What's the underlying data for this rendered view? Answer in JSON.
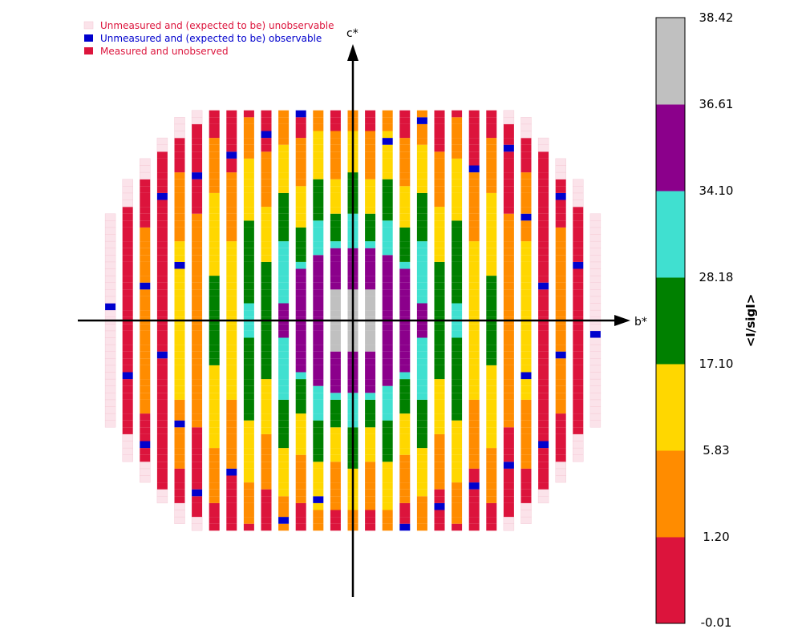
{
  "chart_data": {
    "type": "heatmap",
    "title": "",
    "xlabel": "b*",
    "ylabel": "c*",
    "colorbar": {
      "title": "<I/sigI>",
      "ticks": [
        "-0.01",
        "1.20",
        "5.83",
        "17.10",
        "28.18",
        "34.10",
        "36.61",
        "38.42"
      ],
      "colors": [
        "#dc143c",
        "#ff8c00",
        "#ffd700",
        "#008000",
        "#40e0d0",
        "#8b008b",
        "#c0c0c0"
      ]
    },
    "legend": {
      "placement": "top-left",
      "items": [
        {
          "label": "Unmeasured and (expected to be) unobservable",
          "marker": "#fbe3ea",
          "text_color": "#dc143c"
        },
        {
          "label": "Unmeasured and (expected to be) observable",
          "marker": "#0000cd",
          "text_color": "#0000cd"
        },
        {
          "label": "Measured and unobserved",
          "marker": "#dc143c",
          "text_color": "#dc143c"
        }
      ]
    },
    "grid": false,
    "k_range": [
      -14,
      14
    ],
    "l_range": [
      -15,
      15
    ],
    "resolution_limit_fraction": 0.935,
    "unobservable_shell_fraction": 0.955,
    "pattern": "concentric rings of mean I/sigI decreasing with resolution; systematically absent/unobservable columns are pale pink",
    "ring_bin_bounds": [
      0.13,
      0.27,
      0.4,
      0.55,
      0.72,
      0.86
    ]
  }
}
